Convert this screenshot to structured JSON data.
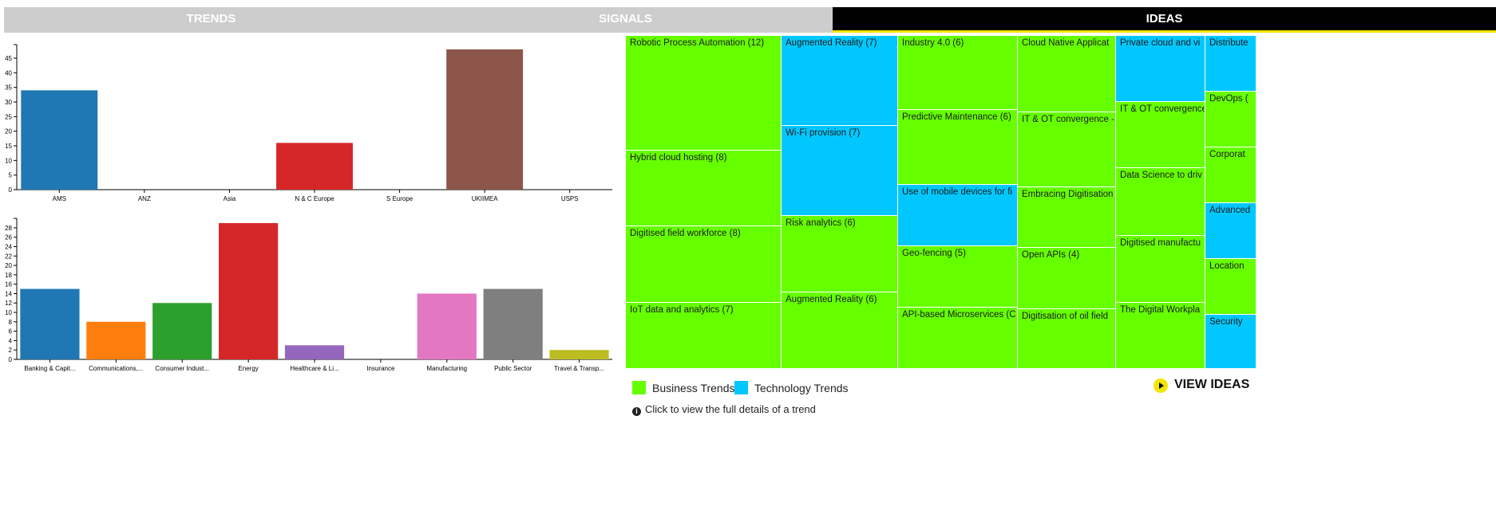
{
  "tabs": {
    "trends": "TRENDS",
    "signals": "SIGNALS",
    "ideas": "IDEAS"
  },
  "chart_data": [
    {
      "type": "bar",
      "categories": [
        "AMS",
        "ANZ",
        "Asia",
        "N & C Europe",
        "S Europe",
        "UKIIMEA",
        "USPS"
      ],
      "values": [
        34,
        0,
        0,
        16,
        0,
        48,
        0
      ],
      "colors": [
        "#1f77b4",
        "#ff7f0e",
        "#2ca02c",
        "#d62728",
        "#9467bd",
        "#8c564b",
        "#e377c2"
      ],
      "yticks": [
        0,
        5,
        10,
        15,
        20,
        25,
        30,
        35,
        40,
        45
      ],
      "ylim": [
        0,
        48
      ],
      "grid": false,
      "legend": "none"
    },
    {
      "type": "bar",
      "categories": [
        "Banking & Capit...",
        "Communications,...",
        "Consumer Indust...",
        "Energy",
        "Healthcare & Li...",
        "Insurance",
        "Manufacturing",
        "Public Sector",
        "Travel & Transp..."
      ],
      "values": [
        15,
        8,
        12,
        29,
        3,
        0,
        14,
        15,
        2
      ],
      "colors": [
        "#1f77b4",
        "#ff7f0e",
        "#2ca02c",
        "#d62728",
        "#9467bd",
        "#8c564b",
        "#e377c2",
        "#7f7f7f",
        "#bcbd22"
      ],
      "yticks": [
        0,
        2,
        4,
        6,
        8,
        10,
        12,
        14,
        16,
        18,
        20,
        22,
        24,
        26,
        28
      ],
      "ylim": [
        0,
        29
      ],
      "grid": false,
      "legend": "none"
    },
    {
      "type": "treemap",
      "colors": {
        "business": "#66ff00",
        "technology": "#00c8ff"
      },
      "tiles": [
        {
          "label": "Robotic Process Automation (12)",
          "group": "business"
        },
        {
          "label": "Hybrid cloud hosting (8)",
          "group": "business"
        },
        {
          "label": "Digitised field workforce (8)",
          "group": "business"
        },
        {
          "label": "IoT data and analytics (7)",
          "group": "business"
        },
        {
          "label": "Augmented Reality (7)",
          "group": "technology"
        },
        {
          "label": "Wi-Fi provision (7)",
          "group": "technology"
        },
        {
          "label": "Risk analytics (6)",
          "group": "business"
        },
        {
          "label": "Augmented Reality (6)",
          "group": "business"
        },
        {
          "label": "Industry 4.0 (6)",
          "group": "business"
        },
        {
          "label": "Predictive Maintenance (6)",
          "group": "business"
        },
        {
          "label": "Use of mobile devices for fi",
          "group": "technology"
        },
        {
          "label": "Geo-fencing (5)",
          "group": "business"
        },
        {
          "label": "API-based Microservices (C",
          "group": "business"
        },
        {
          "label": "Cloud Native Applicat",
          "group": "business"
        },
        {
          "label": "IT & OT convergence -",
          "group": "business"
        },
        {
          "label": "Embracing Digitisation",
          "group": "business"
        },
        {
          "label": "Open APIs (4)",
          "group": "business"
        },
        {
          "label": "Digitisation of oil field",
          "group": "business"
        },
        {
          "label": "Private cloud and vi",
          "group": "technology"
        },
        {
          "label": "IT & OT convergence",
          "group": "business"
        },
        {
          "label": "Data Science to driv",
          "group": "business"
        },
        {
          "label": "Digitised manufactu",
          "group": "business"
        },
        {
          "label": "The Digital Workpla",
          "group": "business"
        },
        {
          "label": "Distribute",
          "group": "technology"
        },
        {
          "label": "DevOps (",
          "group": "business"
        },
        {
          "label": "Corporat",
          "group": "business"
        },
        {
          "label": "Advanced",
          "group": "technology"
        },
        {
          "label": "Location",
          "group": "business"
        },
        {
          "label": "Security",
          "group": "technology"
        }
      ]
    }
  ],
  "legend": {
    "business": "Business Trends",
    "technology": "Technology Trends"
  },
  "view_ideas": "VIEW IDEAS",
  "hint": "Click to view the full details of a trend",
  "icons": {
    "play": "play-circle-icon",
    "info": "info-icon"
  }
}
